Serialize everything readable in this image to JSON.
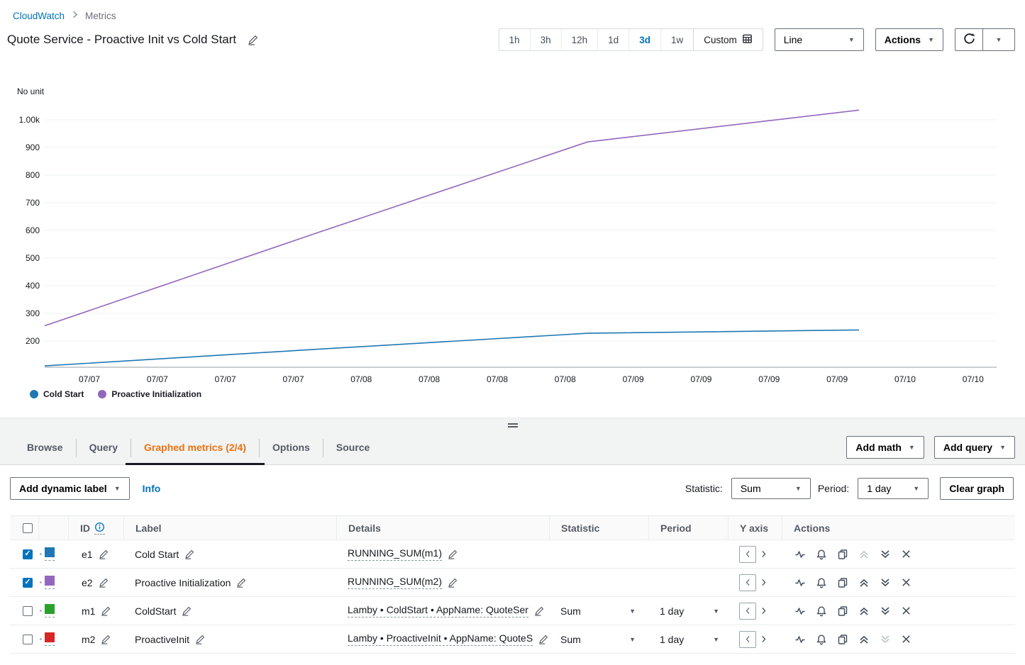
{
  "breadcrumb": {
    "root": "CloudWatch",
    "current": "Metrics"
  },
  "header": {
    "title": "Quote Service - Proactive Init vs Cold Start"
  },
  "toolbar": {
    "time_ranges": [
      "1h",
      "3h",
      "12h",
      "1d",
      "3d",
      "1w"
    ],
    "selected_range": "3d",
    "custom_label": "Custom",
    "chart_type": "Line",
    "actions_label": "Actions"
  },
  "chart_data": {
    "type": "line",
    "title": "Quote Service - Proactive Init vs Cold Start",
    "unit_label": "No unit",
    "y_tick_labels": [
      "1.00k",
      "900",
      "800",
      "700",
      "600",
      "500",
      "400",
      "300",
      "200"
    ],
    "y_tick_values": [
      1000,
      900,
      800,
      700,
      600,
      500,
      400,
      300,
      200
    ],
    "x_tick_labels": [
      "07/07",
      "07/07",
      "07/07",
      "07/07",
      "07/08",
      "07/08",
      "07/08",
      "07/08",
      "07/09",
      "07/09",
      "07/09",
      "07/09",
      "07/10",
      "07/10"
    ],
    "x": [
      "07/07",
      "07/08",
      "07/09",
      "07/10"
    ],
    "series": [
      {
        "name": "Cold Start",
        "color": "#1f77b4",
        "values": [
          110,
          170,
          228,
          240
        ]
      },
      {
        "name": "Proactive Initialization",
        "color": "#9467bd",
        "values": [
          255,
          590,
          920,
          1035
        ]
      }
    ],
    "ylim": [
      100,
      1050
    ],
    "grid": true,
    "legend_position": "bottom"
  },
  "tabs": {
    "items": [
      "Browse",
      "Query",
      "Graphed metrics (2/4)",
      "Options",
      "Source"
    ],
    "active": "Graphed metrics (2/4)"
  },
  "panel_buttons": {
    "add_math": "Add math",
    "add_query": "Add query"
  },
  "controls": {
    "add_dynamic_label": "Add dynamic label",
    "info": "Info",
    "statistic_label": "Statistic:",
    "statistic_value": "Sum",
    "period_label": "Period:",
    "period_value": "1 day",
    "clear_graph": "Clear graph"
  },
  "table": {
    "headers": {
      "id": "ID",
      "label": "Label",
      "details": "Details",
      "statistic": "Statistic",
      "period": "Period",
      "y_axis": "Y axis",
      "actions": "Actions"
    },
    "rows": [
      {
        "id": "e1",
        "checked": true,
        "color": "#1f77b4",
        "label": "Cold Start",
        "details": "RUNNING_SUM(m1)",
        "statistic": "",
        "period": "",
        "move_up_disabled": true
      },
      {
        "id": "e2",
        "checked": true,
        "color": "#9467bd",
        "label": "Proactive Initialization",
        "details": "RUNNING_SUM(m2)",
        "statistic": "",
        "period": ""
      },
      {
        "id": "m1",
        "checked": false,
        "color": "#2ca02c",
        "label": "ColdStart",
        "details": "Lamby • ColdStart • AppName: QuoteSer",
        "statistic": "Sum",
        "period": "1 day"
      },
      {
        "id": "m2",
        "checked": false,
        "color": "#d62728",
        "label": "ProactiveInit",
        "details": "Lamby • ProactiveInit • AppName: QuoteS",
        "statistic": "Sum",
        "period": "1 day",
        "move_down_disabled": true
      }
    ]
  },
  "colors": {
    "accent": "#0073bb",
    "active_tab": "#ec7211",
    "table_header_text": "#545b64"
  }
}
